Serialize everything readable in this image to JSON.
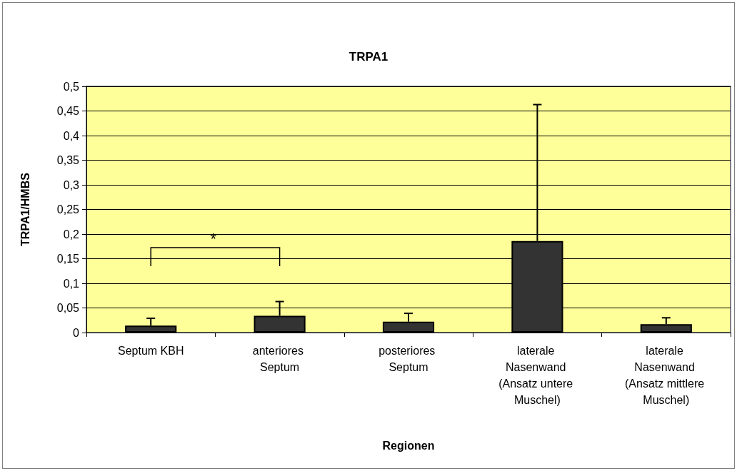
{
  "chart_data": {
    "type": "bar",
    "title": "TRPA1",
    "xlabel": "Regionen",
    "ylabel": "TRPA1/HMBS",
    "categories": [
      "Septum KBH",
      "anteriores Septum",
      "posteriores Septum",
      "laterale Nasenwand (Ansatz untere Muschel)",
      "laterale Nasenwand (Ansatz mittlere Muschel)"
    ],
    "series": [
      {
        "color": "#333333",
        "values": [
          0.014,
          0.034,
          0.022,
          0.186,
          0.017
        ],
        "errors": [
          [
            0.014,
            0.029
          ],
          [
            0.034,
            0.063
          ],
          [
            0.022,
            0.039
          ],
          [
            0.186,
            0.463
          ],
          [
            0.017,
            0.03
          ]
        ]
      }
    ],
    "ylim": [
      0,
      0.5
    ],
    "yticks": [
      0,
      {
        "value": 0.05,
        "label": "0,05"
      },
      {
        "value": 0.1,
        "label": "0,1"
      },
      {
        "value": 0.15,
        "label": "0,15"
      },
      {
        "value": 0.2,
        "label": "0,2"
      },
      {
        "value": 0.25,
        "label": "0,25"
      },
      {
        "value": 0.3,
        "label": "0,3"
      },
      {
        "value": 0.35,
        "label": "0,35"
      },
      {
        "value": 0.4,
        "label": "0,4"
      },
      {
        "value": 0.45,
        "label": "0,45"
      },
      {
        "value": 0.5,
        "label": "0,5"
      }
    ],
    "grid": "y",
    "annotations": [
      "*"
    ]
  }
}
